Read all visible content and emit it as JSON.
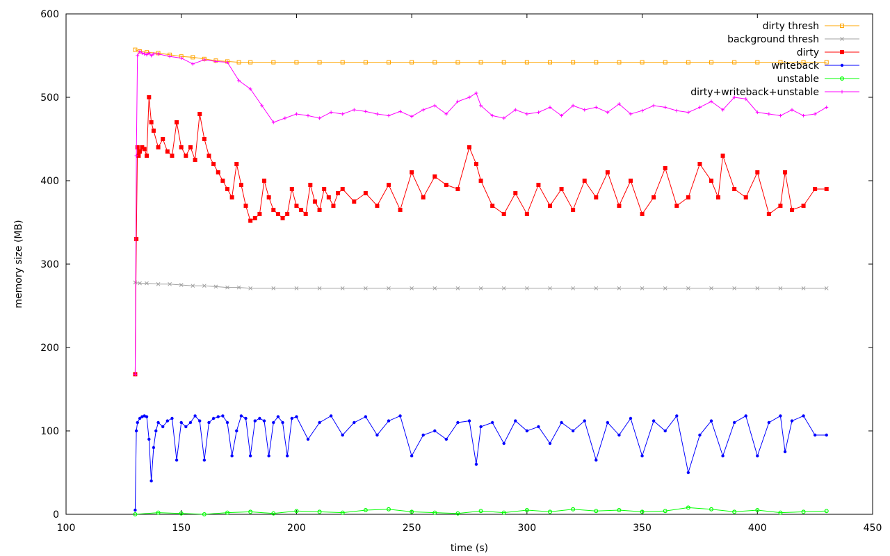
{
  "chart_data": {
    "type": "line",
    "title": "",
    "xlabel": "time (s)",
    "ylabel": "memory size (MB)",
    "xlim": [
      100,
      450
    ],
    "ylim": [
      0,
      600
    ],
    "xticks": [
      100,
      150,
      200,
      250,
      300,
      350,
      400,
      450
    ],
    "yticks": [
      0,
      100,
      200,
      300,
      400,
      500,
      600
    ],
    "grid": false,
    "legend_position": "top-right",
    "series": [
      {
        "name": "dirty thresh",
        "color": "#ffa500",
        "marker": "square",
        "x": [
          130,
          132,
          135,
          140,
          145,
          150,
          155,
          160,
          165,
          170,
          175,
          180,
          190,
          200,
          210,
          220,
          230,
          240,
          250,
          260,
          270,
          280,
          290,
          300,
          310,
          320,
          330,
          340,
          350,
          360,
          370,
          380,
          390,
          400,
          410,
          420,
          430
        ],
        "y": [
          557,
          555,
          554,
          553,
          551,
          549,
          548,
          546,
          544,
          543,
          542,
          542,
          542,
          542,
          542,
          542,
          542,
          542,
          542,
          542,
          542,
          542,
          542,
          542,
          542,
          542,
          542,
          542,
          542,
          542,
          542,
          542,
          542,
          542,
          542,
          542,
          542
        ]
      },
      {
        "name": "background thresh",
        "color": "#a0a0a0",
        "marker": "x",
        "x": [
          130,
          132,
          135,
          140,
          145,
          150,
          155,
          160,
          165,
          170,
          175,
          180,
          190,
          200,
          210,
          220,
          230,
          240,
          250,
          260,
          270,
          280,
          290,
          300,
          310,
          320,
          330,
          340,
          350,
          360,
          370,
          380,
          390,
          400,
          410,
          420,
          430
        ],
        "y": [
          278,
          277,
          277,
          276,
          276,
          275,
          274,
          274,
          273,
          272,
          272,
          271,
          271,
          271,
          271,
          271,
          271,
          271,
          271,
          271,
          271,
          271,
          271,
          271,
          271,
          271,
          271,
          271,
          271,
          271,
          271,
          271,
          271,
          271,
          271,
          271,
          271
        ]
      },
      {
        "name": "dirty",
        "color": "#ff0000",
        "marker": "filled-square",
        "x": [
          130,
          130.5,
          131,
          131.5,
          132,
          133,
          134,
          135,
          136,
          137,
          138,
          140,
          142,
          144,
          146,
          148,
          150,
          152,
          154,
          156,
          158,
          160,
          162,
          164,
          166,
          168,
          170,
          172,
          174,
          176,
          178,
          180,
          182,
          184,
          186,
          188,
          190,
          192,
          194,
          196,
          198,
          200,
          202,
          204,
          206,
          208,
          210,
          212,
          214,
          216,
          218,
          220,
          225,
          230,
          235,
          240,
          245,
          250,
          255,
          260,
          265,
          270,
          275,
          278,
          280,
          285,
          290,
          295,
          300,
          305,
          310,
          315,
          320,
          325,
          330,
          335,
          340,
          345,
          350,
          355,
          360,
          365,
          370,
          375,
          380,
          383,
          385,
          390,
          395,
          400,
          405,
          410,
          412,
          415,
          420,
          425,
          430
        ],
        "y": [
          168,
          330,
          440,
          430,
          435,
          440,
          438,
          430,
          500,
          470,
          460,
          440,
          450,
          435,
          430,
          470,
          440,
          430,
          440,
          425,
          480,
          450,
          430,
          420,
          410,
          400,
          390,
          380,
          420,
          395,
          370,
          352,
          355,
          360,
          400,
          380,
          365,
          360,
          355,
          360,
          390,
          370,
          365,
          360,
          395,
          375,
          365,
          390,
          380,
          370,
          385,
          390,
          375,
          385,
          370,
          395,
          365,
          410,
          380,
          405,
          395,
          390,
          440,
          420,
          400,
          370,
          360,
          385,
          360,
          395,
          370,
          390,
          365,
          400,
          380,
          410,
          370,
          400,
          360,
          380,
          415,
          370,
          380,
          420,
          400,
          380,
          430,
          390,
          380,
          410,
          360,
          370,
          410,
          365,
          370,
          390,
          390
        ]
      },
      {
        "name": "writeback",
        "color": "#0000ff",
        "marker": "filled-circle",
        "x": [
          130,
          130.5,
          131,
          132,
          133,
          134,
          135,
          136,
          137,
          138,
          139,
          140,
          142,
          144,
          146,
          148,
          150,
          152,
          154,
          156,
          158,
          160,
          162,
          164,
          166,
          168,
          170,
          172,
          174,
          176,
          178,
          180,
          182,
          184,
          186,
          188,
          190,
          192,
          194,
          196,
          198,
          200,
          205,
          210,
          215,
          220,
          225,
          230,
          235,
          240,
          245,
          250,
          255,
          260,
          265,
          270,
          275,
          278,
          280,
          285,
          290,
          295,
          300,
          305,
          310,
          315,
          320,
          325,
          330,
          335,
          340,
          345,
          350,
          355,
          360,
          365,
          370,
          375,
          380,
          385,
          390,
          395,
          400,
          405,
          410,
          412,
          415,
          420,
          425,
          430
        ],
        "y": [
          5,
          100,
          110,
          115,
          117,
          118,
          117,
          90,
          40,
          80,
          100,
          110,
          105,
          112,
          115,
          65,
          110,
          105,
          110,
          118,
          112,
          65,
          110,
          115,
          117,
          118,
          110,
          70,
          100,
          118,
          115,
          70,
          112,
          115,
          112,
          70,
          110,
          117,
          110,
          70,
          115,
          117,
          90,
          110,
          118,
          95,
          110,
          117,
          95,
          112,
          118,
          70,
          95,
          100,
          90,
          110,
          112,
          60,
          105,
          110,
          85,
          112,
          100,
          105,
          85,
          110,
          100,
          112,
          65,
          110,
          95,
          115,
          70,
          112,
          100,
          118,
          50,
          95,
          112,
          70,
          110,
          118,
          70,
          110,
          118,
          75,
          112,
          118,
          95,
          95
        ]
      },
      {
        "name": "unstable",
        "color": "#00ff00",
        "marker": "circle",
        "x": [
          130,
          140,
          150,
          160,
          170,
          180,
          190,
          200,
          210,
          220,
          230,
          240,
          250,
          260,
          270,
          280,
          290,
          300,
          310,
          320,
          330,
          340,
          350,
          360,
          370,
          380,
          390,
          400,
          410,
          420,
          430
        ],
        "y": [
          0,
          2,
          1,
          0,
          2,
          3,
          1,
          4,
          3,
          2,
          5,
          6,
          3,
          2,
          1,
          4,
          2,
          5,
          3,
          6,
          4,
          5,
          3,
          4,
          8,
          6,
          3,
          5,
          2,
          3,
          4
        ]
      },
      {
        "name": "dirty+writeback+unstable",
        "color": "#ff00ff",
        "marker": "plus",
        "x": [
          130,
          130.5,
          131,
          132,
          133,
          134,
          135,
          136,
          137,
          138,
          140,
          145,
          150,
          155,
          160,
          165,
          170,
          175,
          180,
          185,
          190,
          195,
          200,
          205,
          210,
          215,
          220,
          225,
          230,
          235,
          240,
          245,
          250,
          255,
          260,
          265,
          270,
          275,
          278,
          280,
          285,
          290,
          295,
          300,
          305,
          310,
          315,
          320,
          325,
          330,
          335,
          340,
          345,
          350,
          355,
          360,
          365,
          370,
          375,
          380,
          385,
          390,
          395,
          400,
          405,
          410,
          415,
          420,
          425,
          430
        ],
        "y": [
          168,
          430,
          550,
          555,
          553,
          552,
          551,
          553,
          550,
          552,
          552,
          549,
          547,
          540,
          545,
          543,
          542,
          520,
          510,
          490,
          470,
          475,
          480,
          478,
          475,
          482,
          480,
          485,
          483,
          480,
          478,
          483,
          477,
          485,
          490,
          480,
          495,
          500,
          505,
          490,
          478,
          475,
          485,
          480,
          482,
          488,
          478,
          490,
          485,
          488,
          482,
          492,
          480,
          484,
          490,
          488,
          484,
          482,
          488,
          495,
          485,
          500,
          498,
          482,
          480,
          478,
          485,
          478,
          480,
          488
        ]
      }
    ]
  }
}
